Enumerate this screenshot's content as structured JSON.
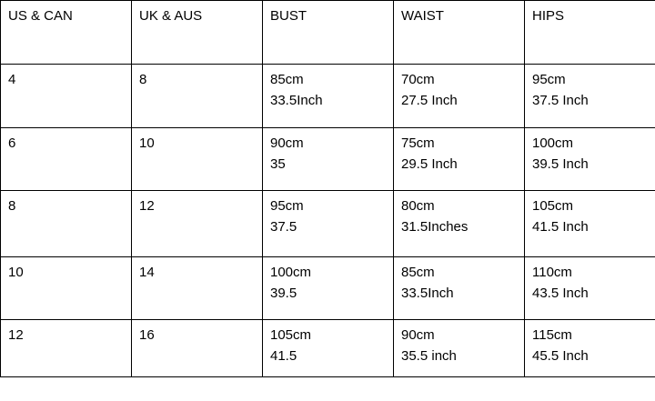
{
  "table": {
    "header": [
      "US & CAN",
      "UK & AUS",
      "BUST",
      "WAIST",
      "HIPS"
    ],
    "rows": [
      [
        "4",
        "8",
        [
          "85cm",
          "33.5Inch"
        ],
        [
          "70cm",
          "27.5 Inch"
        ],
        [
          "95cm",
          "37.5 Inch"
        ]
      ],
      [
        "6",
        "10",
        [
          "90cm",
          "35"
        ],
        [
          "75cm",
          "29.5 Inch"
        ],
        [
          "100cm",
          "39.5 Inch"
        ]
      ],
      [
        "8",
        "12",
        [
          "95cm",
          "37.5"
        ],
        [
          "80cm",
          "31.5Inches"
        ],
        [
          "105cm",
          "41.5 Inch"
        ]
      ],
      [
        "10",
        "14",
        [
          "100cm",
          "39.5"
        ],
        [
          "85cm",
          "33.5Inch"
        ],
        [
          "110cm",
          "43.5 Inch"
        ]
      ],
      [
        "12",
        "16",
        [
          "105cm",
          "41.5"
        ],
        [
          "90cm",
          "35.5 inch"
        ],
        [
          "115cm",
          "45.5 Inch"
        ]
      ]
    ]
  }
}
